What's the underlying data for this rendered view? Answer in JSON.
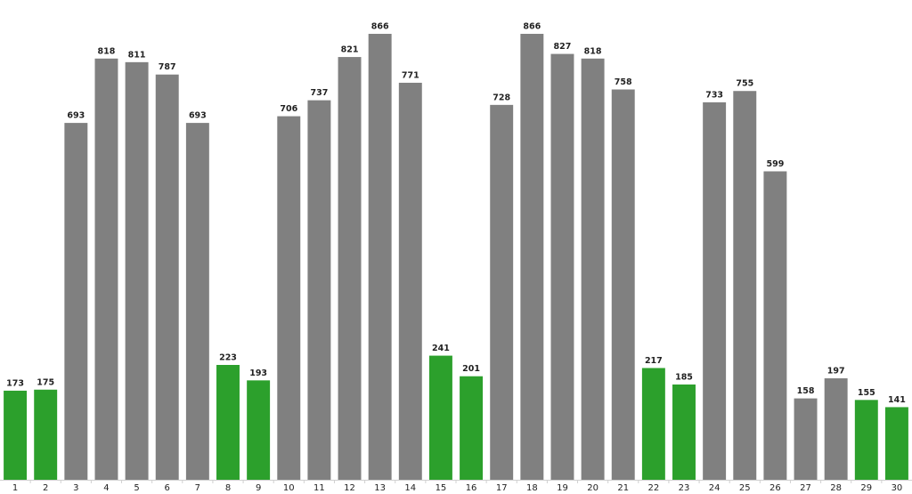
{
  "chart_data": {
    "type": "bar",
    "categories": [
      "1",
      "2",
      "3",
      "4",
      "5",
      "6",
      "7",
      "8",
      "9",
      "10",
      "11",
      "12",
      "13",
      "14",
      "15",
      "16",
      "17",
      "18",
      "19",
      "20",
      "21",
      "22",
      "23",
      "24",
      "25",
      "26",
      "27",
      "28",
      "29",
      "30"
    ],
    "values": [
      173,
      175,
      693,
      818,
      811,
      787,
      693,
      223,
      193,
      706,
      737,
      821,
      866,
      771,
      241,
      201,
      728,
      866,
      827,
      818,
      758,
      217,
      185,
      733,
      755,
      599,
      158,
      197,
      155,
      141
    ],
    "colors": [
      "#2ca02c",
      "#2ca02c",
      "#808080",
      "#808080",
      "#808080",
      "#808080",
      "#808080",
      "#2ca02c",
      "#2ca02c",
      "#808080",
      "#808080",
      "#808080",
      "#808080",
      "#808080",
      "#2ca02c",
      "#2ca02c",
      "#808080",
      "#808080",
      "#808080",
      "#808080",
      "#808080",
      "#2ca02c",
      "#2ca02c",
      "#808080",
      "#808080",
      "#808080",
      "#808080",
      "#808080",
      "#2ca02c",
      "#2ca02c"
    ],
    "ylim": [
      0,
      930
    ]
  }
}
